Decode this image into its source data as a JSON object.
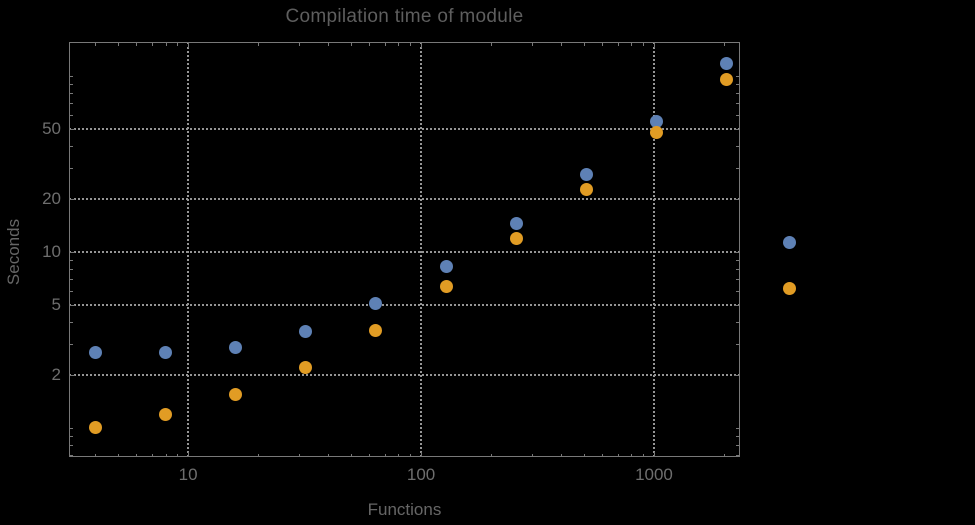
{
  "chart_data": {
    "type": "scatter",
    "title": "Compilation time of module",
    "xlabel": "Functions",
    "ylabel": "Seconds",
    "x_scale": "log",
    "y_scale": "log",
    "xlim": [
      3.08,
      2340
    ],
    "ylim": [
      0.684,
      156
    ],
    "grid": "dotted",
    "x": [
      4,
      8,
      16,
      32,
      64,
      128,
      256,
      512,
      1024,
      2048
    ],
    "series": [
      {
        "name": "series-1",
        "color": "#5e81b5",
        "values": [
          2.7,
          2.7,
          2.85,
          3.55,
          5.1,
          8.3,
          14.5,
          27.7,
          55,
          118
        ]
      },
      {
        "name": "series-2",
        "color": "#e19c24",
        "values": [
          1.0,
          1.2,
          1.55,
          2.2,
          3.6,
          6.4,
          11.9,
          22.6,
          48,
          96
        ]
      }
    ],
    "x_ticks": {
      "major": [
        10,
        100,
        1000
      ],
      "major_labels": [
        "10",
        "100",
        "1000"
      ],
      "minor": [
        4,
        5,
        6,
        7,
        8,
        9,
        20,
        30,
        40,
        50,
        60,
        70,
        80,
        90,
        200,
        300,
        400,
        500,
        600,
        700,
        800,
        900,
        2000
      ]
    },
    "y_ticks": {
      "major": [
        2,
        5,
        10,
        20,
        50
      ],
      "major_labels": [
        "2",
        "5",
        "10",
        "20",
        "50"
      ],
      "minor": [
        0.7,
        0.8,
        0.9,
        1,
        3,
        4,
        6,
        7,
        8,
        9,
        30,
        40,
        60,
        70,
        80,
        90,
        100
      ]
    },
    "legend": {
      "position": "right-of-plot",
      "entries": [
        {
          "series": "series-1",
          "color": "#5e81b5",
          "label": ""
        },
        {
          "series": "series-2",
          "color": "#e19c24",
          "label": ""
        }
      ]
    },
    "colors": {
      "background": "#000000",
      "frame": "#787878",
      "gridline": "#959595",
      "title_text": "#5e5e5e",
      "axis_label_text": "#666666",
      "tick_label_text": "#6e6e6e"
    }
  }
}
